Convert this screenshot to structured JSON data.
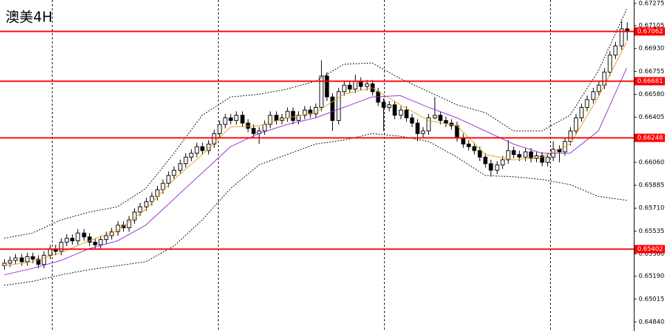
{
  "chart_data": {
    "type": "candlestick",
    "title": "澳美4H",
    "open": [
      0.6527,
      0.6529,
      0.6531,
      0.6533,
      0.653,
      0.6534,
      0.6532,
      0.6528,
      0.6535,
      0.654,
      0.6538,
      0.6545,
      0.6548,
      0.6546,
      0.6552,
      0.6549,
      0.6545,
      0.6543,
      0.6547,
      0.655,
      0.6553,
      0.6558,
      0.6556,
      0.6562,
      0.6568,
      0.6572,
      0.6576,
      0.658,
      0.6585,
      0.659,
      0.6596,
      0.66,
      0.6605,
      0.661,
      0.6613,
      0.6618,
      0.6615,
      0.662,
      0.6628,
      0.6635,
      0.664,
      0.6638,
      0.6642,
      0.6636,
      0.6632,
      0.6628,
      0.663,
      0.6635,
      0.6642,
      0.6638,
      0.664,
      0.6645,
      0.6638,
      0.6642,
      0.6646,
      0.6643,
      0.6648,
      0.6672,
      0.6656,
      0.6638,
      0.666,
      0.6665,
      0.6662,
      0.6668,
      0.6664,
      0.6666,
      0.666,
      0.6652,
      0.6648,
      0.665,
      0.6642,
      0.6646,
      0.664,
      0.6636,
      0.6628,
      0.663,
      0.664,
      0.6642,
      0.6638,
      0.6636,
      0.6634,
      0.6625,
      0.662,
      0.6618,
      0.6615,
      0.661,
      0.6605,
      0.66,
      0.6604,
      0.6608,
      0.6615,
      0.6612,
      0.661,
      0.6614,
      0.6609,
      0.6611,
      0.6606,
      0.661,
      0.6616,
      0.6614,
      0.6622,
      0.663,
      0.664,
      0.6648,
      0.6654,
      0.666,
      0.6665,
      0.6675,
      0.6688,
      0.6695,
      0.6708
    ],
    "high": [
      0.6532,
      0.6534,
      0.6536,
      0.6536,
      0.6537,
      0.6537,
      0.6535,
      0.6538,
      0.6543,
      0.6543,
      0.6548,
      0.6551,
      0.6551,
      0.6555,
      0.6555,
      0.6552,
      0.6548,
      0.655,
      0.6553,
      0.6556,
      0.6561,
      0.6561,
      0.6565,
      0.6571,
      0.6575,
      0.6579,
      0.6583,
      0.6588,
      0.6593,
      0.6599,
      0.6603,
      0.6608,
      0.6613,
      0.6616,
      0.6621,
      0.6621,
      0.6623,
      0.6631,
      0.6638,
      0.6643,
      0.6643,
      0.6645,
      0.6645,
      0.6639,
      0.6635,
      0.6633,
      0.6638,
      0.6645,
      0.6645,
      0.6643,
      0.6648,
      0.6648,
      0.6645,
      0.6649,
      0.6649,
      0.6651,
      0.6684,
      0.6675,
      0.6659,
      0.6663,
      0.6668,
      0.6668,
      0.6673,
      0.6671,
      0.6669,
      0.6669,
      0.6663,
      0.6655,
      0.6653,
      0.6653,
      0.6649,
      0.6649,
      0.6643,
      0.6639,
      0.6633,
      0.6643,
      0.6656,
      0.6645,
      0.6641,
      0.6639,
      0.6637,
      0.6628,
      0.6623,
      0.6621,
      0.6618,
      0.6613,
      0.6608,
      0.6607,
      0.6611,
      0.6623,
      0.6618,
      0.6615,
      0.6617,
      0.6617,
      0.6614,
      0.6614,
      0.6613,
      0.6622,
      0.6619,
      0.6625,
      0.6633,
      0.6643,
      0.6651,
      0.6657,
      0.6663,
      0.6668,
      0.6678,
      0.6691,
      0.6698,
      0.6714,
      0.6713
    ],
    "low": [
      0.6524,
      0.6526,
      0.6528,
      0.6527,
      0.6527,
      0.6529,
      0.6525,
      0.6525,
      0.6532,
      0.6535,
      0.6535,
      0.6542,
      0.6543,
      0.6543,
      0.6546,
      0.6542,
      0.654,
      0.654,
      0.6544,
      0.6547,
      0.655,
      0.6553,
      0.6553,
      0.6559,
      0.6565,
      0.6569,
      0.6573,
      0.6577,
      0.6582,
      0.6587,
      0.6593,
      0.6597,
      0.6602,
      0.6607,
      0.661,
      0.6612,
      0.6612,
      0.6617,
      0.6625,
      0.6632,
      0.6635,
      0.6635,
      0.6633,
      0.6629,
      0.6625,
      0.662,
      0.6627,
      0.6632,
      0.6635,
      0.6635,
      0.6637,
      0.6635,
      0.6635,
      0.6639,
      0.664,
      0.664,
      0.6645,
      0.6653,
      0.663,
      0.6635,
      0.6657,
      0.6659,
      0.6659,
      0.6661,
      0.6661,
      0.6657,
      0.6649,
      0.663,
      0.6645,
      0.6639,
      0.6639,
      0.6637,
      0.6633,
      0.6622,
      0.6625,
      0.6627,
      0.6639,
      0.6635,
      0.6633,
      0.6631,
      0.6622,
      0.6617,
      0.6615,
      0.6612,
      0.6607,
      0.6602,
      0.6595,
      0.6597,
      0.6601,
      0.6605,
      0.6609,
      0.6607,
      0.6607,
      0.6606,
      0.6606,
      0.6603,
      0.6603,
      0.6607,
      0.6606,
      0.6611,
      0.6619,
      0.6627,
      0.6637,
      0.6645,
      0.6651,
      0.6657,
      0.6662,
      0.6672,
      0.6685,
      0.6692,
      0.6699
    ],
    "close": [
      0.6529,
      0.6531,
      0.6533,
      0.653,
      0.6534,
      0.6532,
      0.6528,
      0.6535,
      0.654,
      0.6538,
      0.6545,
      0.6548,
      0.6546,
      0.6552,
      0.6549,
      0.6545,
      0.6543,
      0.6547,
      0.655,
      0.6553,
      0.6558,
      0.6556,
      0.6562,
      0.6568,
      0.6572,
      0.6576,
      0.658,
      0.6585,
      0.659,
      0.6596,
      0.66,
      0.6605,
      0.661,
      0.6613,
      0.6618,
      0.6615,
      0.662,
      0.6628,
      0.6635,
      0.664,
      0.6638,
      0.6642,
      0.6636,
      0.6632,
      0.6628,
      0.663,
      0.6635,
      0.6642,
      0.6638,
      0.664,
      0.6645,
      0.6638,
      0.6642,
      0.6646,
      0.6643,
      0.6648,
      0.6672,
      0.6656,
      0.6638,
      0.666,
      0.6665,
      0.6662,
      0.6668,
      0.6664,
      0.6666,
      0.666,
      0.6652,
      0.6648,
      0.665,
      0.6642,
      0.6646,
      0.664,
      0.6636,
      0.6628,
      0.663,
      0.664,
      0.6642,
      0.6638,
      0.6636,
      0.6634,
      0.6625,
      0.662,
      0.6618,
      0.6615,
      0.661,
      0.6605,
      0.66,
      0.6604,
      0.6608,
      0.6615,
      0.6612,
      0.661,
      0.6614,
      0.6609,
      0.6611,
      0.6606,
      0.661,
      0.6616,
      0.6614,
      0.6622,
      0.663,
      0.664,
      0.6648,
      0.6654,
      0.666,
      0.6665,
      0.6675,
      0.6688,
      0.6695,
      0.6708,
      0.6706
    ],
    "lines": [
      {
        "color": "#e8a020",
        "style": "solid",
        "x": [
          0,
          5,
          10,
          15,
          20,
          25,
          30,
          35,
          40,
          45,
          50,
          55,
          60,
          65,
          70,
          75,
          80,
          85,
          90,
          95,
          100,
          105,
          110
        ],
        "values": [
          0.6527,
          0.653,
          0.6537,
          0.6546,
          0.6554,
          0.657,
          0.6593,
          0.6612,
          0.6633,
          0.6634,
          0.664,
          0.6644,
          0.6658,
          0.6663,
          0.665,
          0.6638,
          0.6634,
          0.6612,
          0.6608,
          0.661,
          0.662,
          0.6656,
          0.6698
        ]
      },
      {
        "color": "#9933cc",
        "style": "solid",
        "x": [
          0,
          5,
          10,
          15,
          20,
          25,
          30,
          35,
          40,
          45,
          50,
          55,
          60,
          65,
          70,
          75,
          80,
          85,
          90,
          95,
          100,
          105,
          110
        ],
        "values": [
          0.652,
          0.6525,
          0.6531,
          0.654,
          0.6546,
          0.6558,
          0.6578,
          0.6598,
          0.6618,
          0.6628,
          0.6635,
          0.664,
          0.6648,
          0.6656,
          0.6657,
          0.6648,
          0.664,
          0.663,
          0.662,
          0.6613,
          0.6613,
          0.663,
          0.6678
        ]
      },
      {
        "color": "#000000",
        "style": "dotted",
        "x": [
          0,
          5,
          10,
          15,
          20,
          25,
          30,
          35,
          40,
          45,
          50,
          55,
          60,
          65,
          70,
          75,
          80,
          85,
          90,
          95,
          100,
          105,
          110
        ],
        "values": [
          0.6548,
          0.6552,
          0.6562,
          0.6568,
          0.6572,
          0.6586,
          0.6613,
          0.6642,
          0.6656,
          0.6658,
          0.6662,
          0.6668,
          0.6681,
          0.6682,
          0.667,
          0.666,
          0.665,
          0.6644,
          0.663,
          0.663,
          0.6642,
          0.6676,
          0.6723
        ]
      },
      {
        "color": "#000000",
        "style": "dotted",
        "x": [
          0,
          5,
          10,
          15,
          20,
          25,
          30,
          35,
          40,
          45,
          50,
          55,
          60,
          65,
          70,
          75,
          80,
          85,
          90,
          95,
          100,
          105,
          110
        ],
        "values": [
          0.6512,
          0.6515,
          0.652,
          0.6524,
          0.6527,
          0.653,
          0.6542,
          0.6562,
          0.6586,
          0.6604,
          0.6612,
          0.662,
          0.6623,
          0.6628,
          0.6626,
          0.6622,
          0.661,
          0.6596,
          0.6595,
          0.6593,
          0.6589,
          0.658,
          0.6577
        ]
      }
    ],
    "levels": [
      {
        "value": 0.67062,
        "color": "#ff0000"
      },
      {
        "value": 0.66681,
        "color": "#ff0000"
      },
      {
        "value": 0.66248,
        "color": "#ff0000"
      },
      {
        "value": 0.65402,
        "color": "#ff0000"
      }
    ],
    "ylim": [
      0.64771,
      0.67301
    ],
    "yticks": [
      0.67275,
      0.67105,
      {
        "value": 0.6693,
        "label": "0.66930"
      },
      0.66755,
      {
        "value": 0.6658,
        "label": "0.66580"
      },
      0.66405,
      {
        "value": 0.6606,
        "label": "0.66060"
      },
      0.65885,
      {
        "value": 0.6571,
        "label": "0.65710"
      },
      0.65535,
      {
        "value": 0.6536,
        "label": "0.65360"
      },
      {
        "value": 0.6519,
        "label": "0.65190"
      },
      0.65015,
      {
        "value": 0.6484,
        "label": "0.64840"
      }
    ]
  }
}
